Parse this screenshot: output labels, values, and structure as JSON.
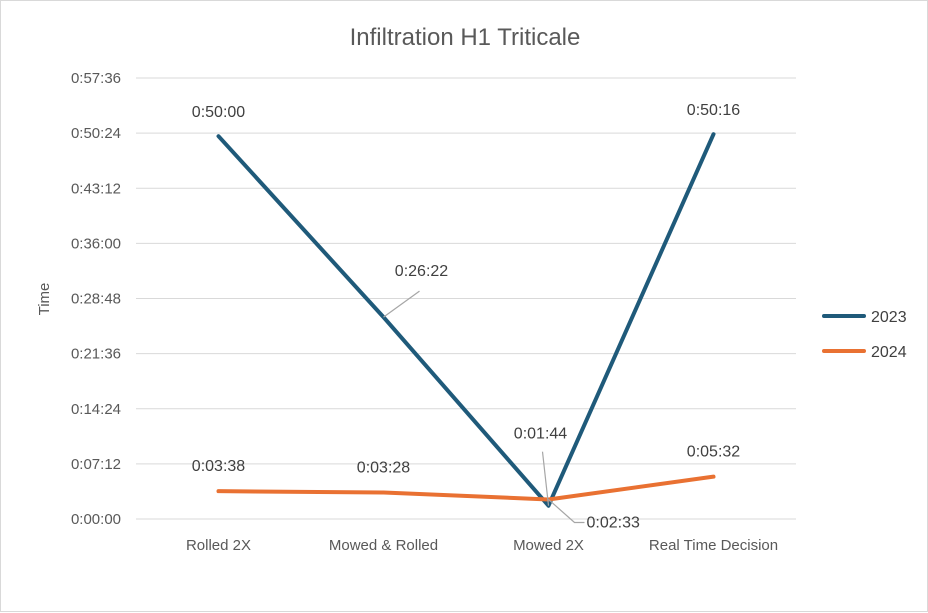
{
  "chart_data": {
    "type": "line",
    "title": "Infiltration H1 Triticale",
    "xlabel": "",
    "ylabel": "Time",
    "categories": [
      "Rolled 2X",
      "Mowed & Rolled",
      "Mowed 2X",
      "Real Time Decision"
    ],
    "y_unit": "seconds",
    "ylim": [
      0,
      3456
    ],
    "y_ticks": [
      0,
      432,
      864,
      1296,
      1728,
      2160,
      2592,
      3024,
      3456
    ],
    "y_tick_labels": [
      "0:00:00",
      "0:07:12",
      "0:14:24",
      "0:21:36",
      "0:28:48",
      "0:36:00",
      "0:43:12",
      "0:50:24",
      "0:57:36"
    ],
    "grid": true,
    "legend_position": "right",
    "series": [
      {
        "name": "2023",
        "color": "#1f5a7a",
        "values": [
          3000,
          1582,
          104,
          3016
        ],
        "labels": [
          "0:50:00",
          "0:26:22",
          "0:01:44",
          "0:50:16"
        ]
      },
      {
        "name": "2024",
        "color": "#e97132",
        "values": [
          218,
          208,
          153,
          332
        ],
        "labels": [
          "0:03:38",
          "0:03:28",
          "0:02:33",
          "0:05:32"
        ]
      }
    ]
  }
}
